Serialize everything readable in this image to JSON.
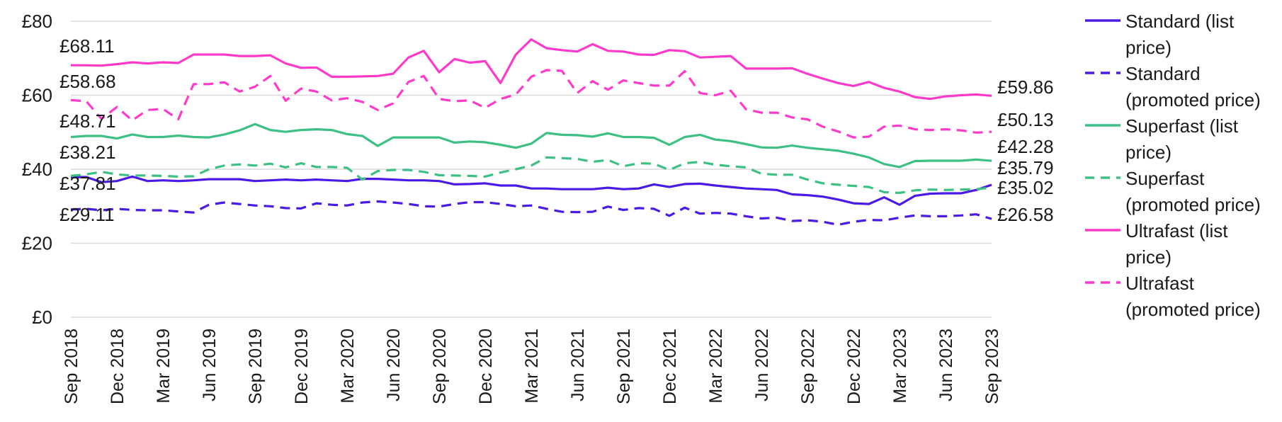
{
  "chart_data": {
    "type": "line",
    "x": [
      "Sep 2018",
      "Oct 2018",
      "Nov 2018",
      "Dec 2018",
      "Jan 2019",
      "Feb 2019",
      "Mar 2019",
      "Apr 2019",
      "May 2019",
      "Jun 2019",
      "Jul 2019",
      "Aug 2019",
      "Sep 2019",
      "Oct 2019",
      "Nov 2019",
      "Dec 2019",
      "Jan 2020",
      "Feb 2020",
      "Mar 2020",
      "Apr 2020",
      "May 2020",
      "Jun 2020",
      "Jul 2020",
      "Aug 2020",
      "Sep 2020",
      "Oct 2020",
      "Nov 2020",
      "Dec 2020",
      "Jan 2021",
      "Feb 2021",
      "Mar 2021",
      "Apr 2021",
      "May 2021",
      "Jun 2021",
      "Jul 2021",
      "Aug 2021",
      "Sep 2021",
      "Oct 2021",
      "Nov 2021",
      "Dec 2021",
      "Jan 2022",
      "Feb 2022",
      "Mar 2022",
      "Apr 2022",
      "May 2022",
      "Jun 2022",
      "Jul 2022",
      "Aug 2022",
      "Sep 2022",
      "Oct 2022",
      "Nov 2022",
      "Dec 2022",
      "Jan 2023",
      "Feb 2023",
      "Mar 2023",
      "Apr 2023",
      "May 2023",
      "Jun 2023",
      "Jul 2023",
      "Aug 2023",
      "Sep 2023"
    ],
    "x_tick_labels": [
      "Sep 2018",
      "Dec 2018",
      "Mar 2019",
      "Jun 2019",
      "Sep 2019",
      "Dec 2019",
      "Mar 2020",
      "Jun 2020",
      "Sep 2020",
      "Dec 2020",
      "Mar 2021",
      "Jun 2021",
      "Sep 2021",
      "Dec 2021",
      "Mar 2022",
      "Jun 2022",
      "Sep 2022",
      "Dec 2022",
      "Mar 2023",
      "Jun 2023",
      "Sep 2023"
    ],
    "y_tick_labels": [
      "£0",
      "£20",
      "£40",
      "£60",
      "£80"
    ],
    "ylim": [
      0,
      80
    ],
    "grid": "horizontal",
    "legend_position": "right",
    "series": [
      {
        "name": "Standard (list price)",
        "color": "#4B1AE6",
        "dash": "solid",
        "values": [
          37.81,
          37.9,
          36.5,
          36.8,
          38.0,
          36.8,
          37.0,
          36.8,
          37.0,
          37.3,
          37.3,
          37.3,
          36.8,
          37.0,
          37.2,
          37.0,
          37.2,
          37.0,
          36.8,
          37.4,
          37.4,
          37.2,
          37.0,
          37.0,
          36.8,
          35.9,
          36.0,
          36.2,
          35.6,
          35.6,
          34.8,
          34.8,
          34.6,
          34.6,
          34.6,
          35.0,
          34.6,
          34.8,
          35.9,
          35.2,
          36.0,
          36.1,
          35.6,
          35.2,
          34.8,
          34.6,
          34.4,
          33.2,
          33.0,
          32.6,
          31.8,
          30.8,
          30.6,
          32.4,
          30.4,
          32.8,
          33.4,
          33.5,
          33.5,
          34.4,
          35.79
        ],
        "start_label": "£37.81",
        "end_label": "£35.79"
      },
      {
        "name": "Standard (promoted price)",
        "color": "#4B1AE6",
        "dash": "dashed",
        "values": [
          29.11,
          29.3,
          28.9,
          29.3,
          29.0,
          28.9,
          28.9,
          28.6,
          28.3,
          30.4,
          31.0,
          30.6,
          30.2,
          30.0,
          29.5,
          29.4,
          30.8,
          30.4,
          30.2,
          31.0,
          31.3,
          31.0,
          30.6,
          30.0,
          29.9,
          30.6,
          31.1,
          31.1,
          30.6,
          30.0,
          30.2,
          29.3,
          28.5,
          28.4,
          28.5,
          29.9,
          29.0,
          29.5,
          29.3,
          27.4,
          29.6,
          28.0,
          28.2,
          28.0,
          27.3,
          26.7,
          26.9,
          26.0,
          26.2,
          25.8,
          25.0,
          25.8,
          26.3,
          26.2,
          26.9,
          27.5,
          27.3,
          27.3,
          27.5,
          27.8,
          26.58
        ],
        "start_label": "£29.11",
        "end_label": "£26.58"
      },
      {
        "name": "Superfast (list price)",
        "color": "#3CC083",
        "dash": "solid",
        "values": [
          48.71,
          49.0,
          49.0,
          48.3,
          49.4,
          48.7,
          48.7,
          49.1,
          48.7,
          48.6,
          49.4,
          50.5,
          52.2,
          50.6,
          50.1,
          50.6,
          50.8,
          50.6,
          49.5,
          49.0,
          46.3,
          48.6,
          48.6,
          48.6,
          48.6,
          47.2,
          47.5,
          47.3,
          46.6,
          45.8,
          46.9,
          49.8,
          49.3,
          49.2,
          48.8,
          49.7,
          48.7,
          48.7,
          48.5,
          46.6,
          48.7,
          49.3,
          48.0,
          47.6,
          46.8,
          45.9,
          45.8,
          46.4,
          45.8,
          45.4,
          45.0,
          44.2,
          43.2,
          41.4,
          40.6,
          42.2,
          42.3,
          42.3,
          42.3,
          42.6,
          42.28
        ],
        "start_label": "£48.71",
        "end_label": "£42.28"
      },
      {
        "name": "Superfast (promoted price)",
        "color": "#3CC083",
        "dash": "dashed",
        "values": [
          38.21,
          38.6,
          39.3,
          38.6,
          38.3,
          38.3,
          38.2,
          38.0,
          38.1,
          40.0,
          41.0,
          41.3,
          41.0,
          41.5,
          40.5,
          41.6,
          40.6,
          40.6,
          40.4,
          37.2,
          39.5,
          39.8,
          39.8,
          39.3,
          38.4,
          38.3,
          38.2,
          38.0,
          39.1,
          40.0,
          41.0,
          43.2,
          43.0,
          42.8,
          42.0,
          42.5,
          40.8,
          41.6,
          41.5,
          39.8,
          41.6,
          42.0,
          41.2,
          40.8,
          40.5,
          38.8,
          38.5,
          38.5,
          37.2,
          36.2,
          35.8,
          35.5,
          35.2,
          33.8,
          33.6,
          34.3,
          34.5,
          34.4,
          34.5,
          34.6,
          35.02
        ],
        "start_label": "£38.21",
        "end_label": "£35.02"
      },
      {
        "name": "Ultrafast (list price)",
        "color": "#FF3ACB",
        "dash": "solid",
        "values": [
          68.11,
          68.1,
          68.0,
          68.4,
          68.9,
          68.6,
          68.9,
          68.7,
          71.0,
          71.0,
          71.0,
          70.6,
          70.6,
          70.8,
          68.6,
          67.4,
          67.5,
          65.0,
          65.0,
          65.1,
          65.2,
          65.8,
          70.2,
          72.0,
          66.2,
          69.8,
          68.8,
          69.2,
          63.3,
          71.0,
          75.1,
          72.7,
          72.2,
          71.8,
          73.8,
          72.0,
          71.8,
          71.0,
          70.9,
          72.2,
          71.9,
          70.2,
          70.4,
          70.6,
          67.2,
          67.2,
          67.2,
          67.3,
          65.8,
          64.5,
          63.3,
          62.5,
          63.6,
          62.0,
          61.0,
          59.5,
          59.0,
          59.7,
          60.0,
          60.2,
          59.86
        ],
        "start_label": "£68.11",
        "end_label": "£59.86"
      },
      {
        "name": "Ultrafast (promoted price)",
        "color": "#FF3ACB",
        "dash": "dashed",
        "values": [
          58.68,
          58.4,
          53.6,
          56.8,
          53.2,
          56.0,
          56.3,
          53.5,
          63.0,
          63.0,
          63.5,
          61.0,
          62.3,
          65.2,
          58.5,
          61.8,
          61.0,
          58.6,
          59.2,
          58.2,
          56.0,
          57.8,
          63.6,
          65.2,
          59.0,
          58.4,
          58.6,
          56.6,
          59.0,
          60.2,
          65.0,
          66.8,
          66.6,
          60.6,
          63.8,
          61.5,
          64.0,
          63.3,
          62.6,
          62.6,
          66.5,
          60.6,
          60.0,
          61.2,
          56.2,
          55.3,
          55.3,
          54.0,
          53.5,
          51.5,
          50.2,
          48.6,
          48.8,
          51.5,
          51.8,
          50.8,
          50.6,
          50.8,
          50.5,
          49.9,
          50.13
        ],
        "start_label": "£58.68",
        "end_label": "£50.13"
      }
    ]
  }
}
